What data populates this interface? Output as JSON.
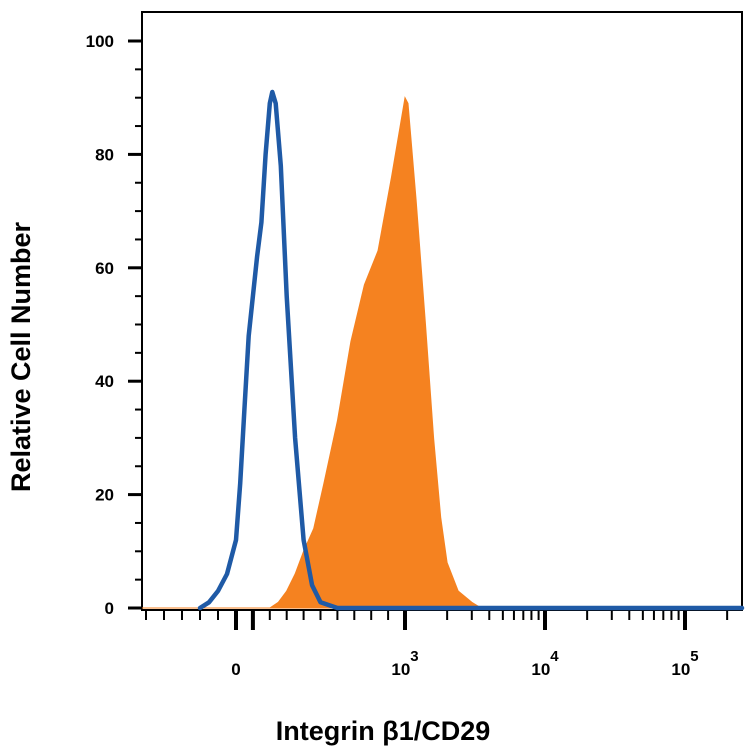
{
  "chart_data": {
    "type": "area",
    "xlabel": "Integrin β1/CD29",
    "ylabel": "Relative Cell Number",
    "ylim": [
      0,
      105
    ],
    "x_scale": "biexponential",
    "y_ticks": [
      0,
      20,
      40,
      60,
      80,
      100
    ],
    "x_ticks": [
      {
        "value": 0,
        "base": "0",
        "exp": ""
      },
      {
        "value": 1000,
        "base": "10",
        "exp": "3"
      },
      {
        "value": 10000,
        "base": "10",
        "exp": "4"
      },
      {
        "value": 100000,
        "base": "10",
        "exp": "5"
      }
    ],
    "grid": false,
    "legend": "none",
    "series": [
      {
        "color": "#1f5aa6",
        "style": "outline",
        "points": [
          [
            -200,
            0
          ],
          [
            -150,
            1
          ],
          [
            -100,
            3
          ],
          [
            -50,
            6
          ],
          [
            0,
            12
          ],
          [
            25,
            22
          ],
          [
            50,
            35
          ],
          [
            75,
            48
          ],
          [
            100,
            55
          ],
          [
            125,
            62
          ],
          [
            150,
            68
          ],
          [
            175,
            80
          ],
          [
            200,
            89
          ],
          [
            215,
            91
          ],
          [
            235,
            89
          ],
          [
            265,
            78
          ],
          [
            300,
            55
          ],
          [
            350,
            30
          ],
          [
            400,
            12
          ],
          [
            450,
            4
          ],
          [
            500,
            1
          ],
          [
            600,
            0
          ],
          [
            1000000,
            0
          ]
        ]
      },
      {
        "color": "#f58220",
        "style": "filled",
        "points": [
          [
            -1000,
            0
          ],
          [
            200,
            0
          ],
          [
            250,
            1
          ],
          [
            300,
            3
          ],
          [
            350,
            6
          ],
          [
            400,
            10
          ],
          [
            460,
            14
          ],
          [
            520,
            22
          ],
          [
            600,
            33
          ],
          [
            680,
            47
          ],
          [
            760,
            57
          ],
          [
            840,
            63
          ],
          [
            920,
            76
          ],
          [
            1000,
            90
          ],
          [
            1050,
            89
          ],
          [
            1200,
            72
          ],
          [
            1400,
            50
          ],
          [
            1600,
            30
          ],
          [
            1800,
            16
          ],
          [
            2000,
            8
          ],
          [
            2400,
            3
          ],
          [
            3000,
            1
          ],
          [
            3500,
            0
          ],
          [
            1000000,
            0
          ]
        ]
      }
    ]
  }
}
